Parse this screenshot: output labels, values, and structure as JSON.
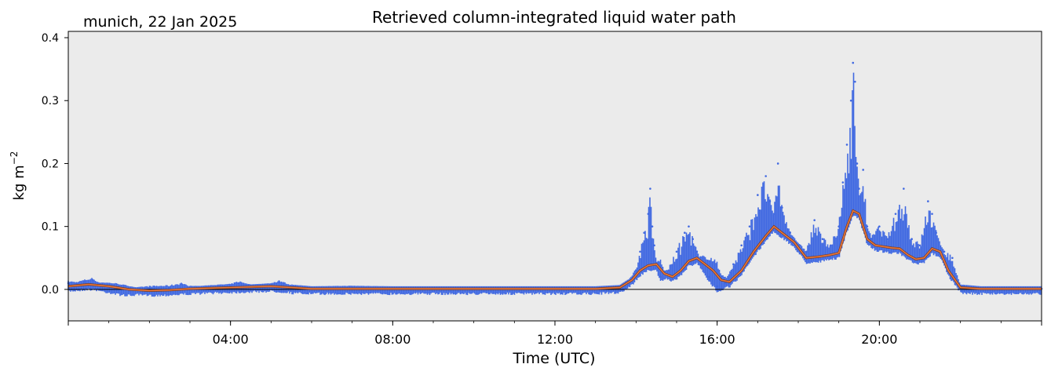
{
  "location_date": "munich, 22 Jan 2025",
  "colors": {
    "background": "#ebebeb",
    "raw_points": "#4169e1",
    "smoothed_line": "#e8763a",
    "zero_line": "#000000"
  },
  "chart_data": {
    "type": "scatter",
    "title": "Retrieved column-integrated liquid water path",
    "xlabel": "Time (UTC)",
    "ylabel": "kg m",
    "ylabel_superscript": "−2",
    "xlim": [
      0,
      24
    ],
    "ylim": [
      -0.05,
      0.41
    ],
    "x_ticks": [
      {
        "x": 0,
        "label": ""
      },
      {
        "x": 4,
        "label": "04:00"
      },
      {
        "x": 8,
        "label": "08:00"
      },
      {
        "x": 12,
        "label": "12:00"
      },
      {
        "x": 16,
        "label": "16:00"
      },
      {
        "x": 20,
        "label": "20:00"
      },
      {
        "x": 24,
        "label": ""
      }
    ],
    "y_ticks": [
      {
        "y": 0.0,
        "label": "0.0"
      },
      {
        "y": 0.1,
        "label": "0.1"
      },
      {
        "y": 0.2,
        "label": "0.2"
      },
      {
        "y": 0.3,
        "label": "0.3"
      },
      {
        "y": 0.4,
        "label": "0.4"
      }
    ],
    "hline": 0.0,
    "grid": false,
    "series": [
      {
        "style": "raw-dense-scatter",
        "x": [
          0.0,
          0.2,
          0.4,
          0.6,
          0.8,
          1.0,
          1.2,
          1.5,
          2.0,
          2.5,
          2.8,
          3.0,
          3.5,
          4.0,
          4.2,
          4.5,
          5.0,
          5.2,
          5.5,
          6.0,
          7.0,
          8.0,
          9.0,
          10.0,
          11.0,
          12.0,
          13.0,
          13.6,
          13.8,
          14.0,
          14.1,
          14.2,
          14.3,
          14.35,
          14.4,
          14.45,
          14.5,
          14.6,
          14.8,
          15.0,
          15.2,
          15.3,
          15.4,
          15.5,
          15.6,
          15.8,
          16.0,
          16.2,
          16.4,
          16.6,
          16.8,
          17.0,
          17.2,
          17.3,
          17.4,
          17.5,
          17.6,
          17.8,
          18.0,
          18.2,
          18.4,
          18.6,
          18.8,
          19.0,
          19.1,
          19.2,
          19.3,
          19.35,
          19.4,
          19.45,
          19.5,
          19.6,
          19.7,
          19.8,
          20.0,
          20.2,
          20.4,
          20.6,
          20.8,
          21.0,
          21.2,
          21.3,
          21.4,
          21.6,
          21.8,
          22.0,
          22.5,
          23.0,
          23.5,
          24.0
        ],
        "y": [
          0.01,
          0.008,
          0.012,
          0.015,
          0.005,
          0.003,
          0.0,
          -0.002,
          0.002,
          0.003,
          0.008,
          0.0,
          0.003,
          0.005,
          0.01,
          0.004,
          0.006,
          0.012,
          0.002,
          0.001,
          0.002,
          0.001,
          0.001,
          0.001,
          0.001,
          0.001,
          0.001,
          0.003,
          0.01,
          0.03,
          0.06,
          0.09,
          0.12,
          0.16,
          0.1,
          0.07,
          0.04,
          0.02,
          0.03,
          0.06,
          0.09,
          0.1,
          0.08,
          0.06,
          0.04,
          0.02,
          0.005,
          0.01,
          0.04,
          0.07,
          0.1,
          0.15,
          0.18,
          0.14,
          0.12,
          0.2,
          0.13,
          0.09,
          0.07,
          0.06,
          0.11,
          0.08,
          0.07,
          0.1,
          0.17,
          0.23,
          0.3,
          0.36,
          0.33,
          0.2,
          0.16,
          0.19,
          0.1,
          0.08,
          0.1,
          0.08,
          0.12,
          0.16,
          0.08,
          0.07,
          0.14,
          0.12,
          0.09,
          0.06,
          0.05,
          0.002,
          0.001,
          0.001,
          0.001,
          0.001
        ]
      },
      {
        "style": "smoothed-line",
        "x": [
          0.0,
          0.5,
          1.0,
          1.5,
          2.0,
          2.5,
          3.0,
          3.5,
          4.0,
          4.5,
          5.0,
          5.5,
          6.0,
          8.0,
          10.0,
          12.0,
          13.0,
          13.6,
          13.9,
          14.1,
          14.3,
          14.5,
          14.7,
          14.9,
          15.1,
          15.3,
          15.5,
          15.7,
          15.9,
          16.1,
          16.3,
          16.6,
          16.9,
          17.2,
          17.4,
          17.6,
          17.9,
          18.2,
          18.5,
          18.8,
          19.0,
          19.2,
          19.35,
          19.5,
          19.7,
          19.9,
          20.1,
          20.3,
          20.5,
          20.7,
          20.9,
          21.1,
          21.3,
          21.5,
          21.7,
          22.0,
          22.5,
          23.0,
          24.0
        ],
        "y": [
          0.005,
          0.008,
          0.005,
          0.0,
          -0.002,
          -0.001,
          0.001,
          0.002,
          0.003,
          0.004,
          0.005,
          0.003,
          0.001,
          0.001,
          0.001,
          0.001,
          0.001,
          0.003,
          0.015,
          0.03,
          0.038,
          0.04,
          0.025,
          0.02,
          0.03,
          0.045,
          0.05,
          0.04,
          0.03,
          0.015,
          0.012,
          0.03,
          0.06,
          0.085,
          0.1,
          0.09,
          0.075,
          0.05,
          0.052,
          0.055,
          0.058,
          0.1,
          0.125,
          0.12,
          0.08,
          0.07,
          0.068,
          0.066,
          0.065,
          0.055,
          0.048,
          0.05,
          0.065,
          0.06,
          0.03,
          0.003,
          0.001,
          0.001,
          0.001
        ]
      }
    ]
  }
}
